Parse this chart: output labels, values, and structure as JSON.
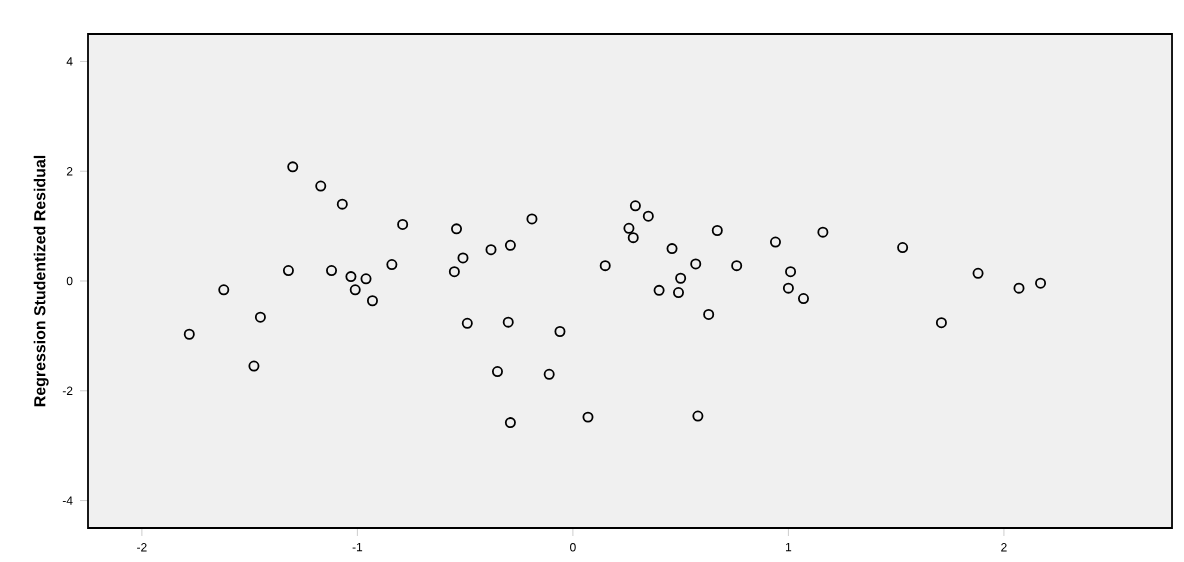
{
  "chart_data": {
    "type": "scatter",
    "ylabel": "Regression Studentized Residual",
    "xlim": [
      -2.25,
      2.78
    ],
    "ylim": [
      -4.5,
      4.5
    ],
    "xticks": [
      -2,
      -1,
      0,
      1,
      2
    ],
    "yticks": [
      -4,
      -2,
      0,
      2,
      4
    ],
    "grid": false,
    "marker": "circle",
    "series": [
      {
        "color": "#000000",
        "x": [
          -1.3,
          -1.17,
          -1.07,
          -0.79,
          -0.54,
          -0.19,
          -1.32,
          -1.12,
          -1.03,
          -0.96,
          -1.01,
          -0.93,
          -0.84,
          -0.51,
          -0.55,
          -0.38,
          -0.29,
          -1.62,
          -1.78,
          -1.45,
          -1.48,
          -0.49,
          -0.3,
          -0.06,
          -0.35,
          -0.11,
          -0.29,
          0.07,
          0.15,
          0.29,
          0.35,
          0.26,
          0.28,
          0.67,
          0.46,
          0.57,
          0.5,
          0.4,
          0.49,
          0.63,
          0.76,
          0.94,
          1.16,
          1.01,
          1.0,
          1.07,
          1.53,
          1.88,
          1.71,
          2.07,
          2.17,
          0.58
        ],
        "values": [
          2.08,
          1.73,
          1.4,
          1.03,
          0.95,
          1.13,
          0.19,
          0.19,
          0.08,
          0.04,
          -0.16,
          -0.36,
          0.3,
          0.42,
          0.17,
          0.57,
          0.65,
          -0.16,
          -0.97,
          -0.66,
          -1.55,
          -0.77,
          -0.75,
          -0.92,
          -1.65,
          -1.7,
          -2.58,
          -2.48,
          0.28,
          1.37,
          1.18,
          0.96,
          0.79,
          0.92,
          0.59,
          0.31,
          0.05,
          -0.17,
          -0.21,
          -0.61,
          0.28,
          0.71,
          0.89,
          0.17,
          -0.13,
          -0.32,
          0.61,
          0.14,
          -0.76,
          -0.13,
          -0.04,
          -2.46
        ]
      }
    ]
  }
}
